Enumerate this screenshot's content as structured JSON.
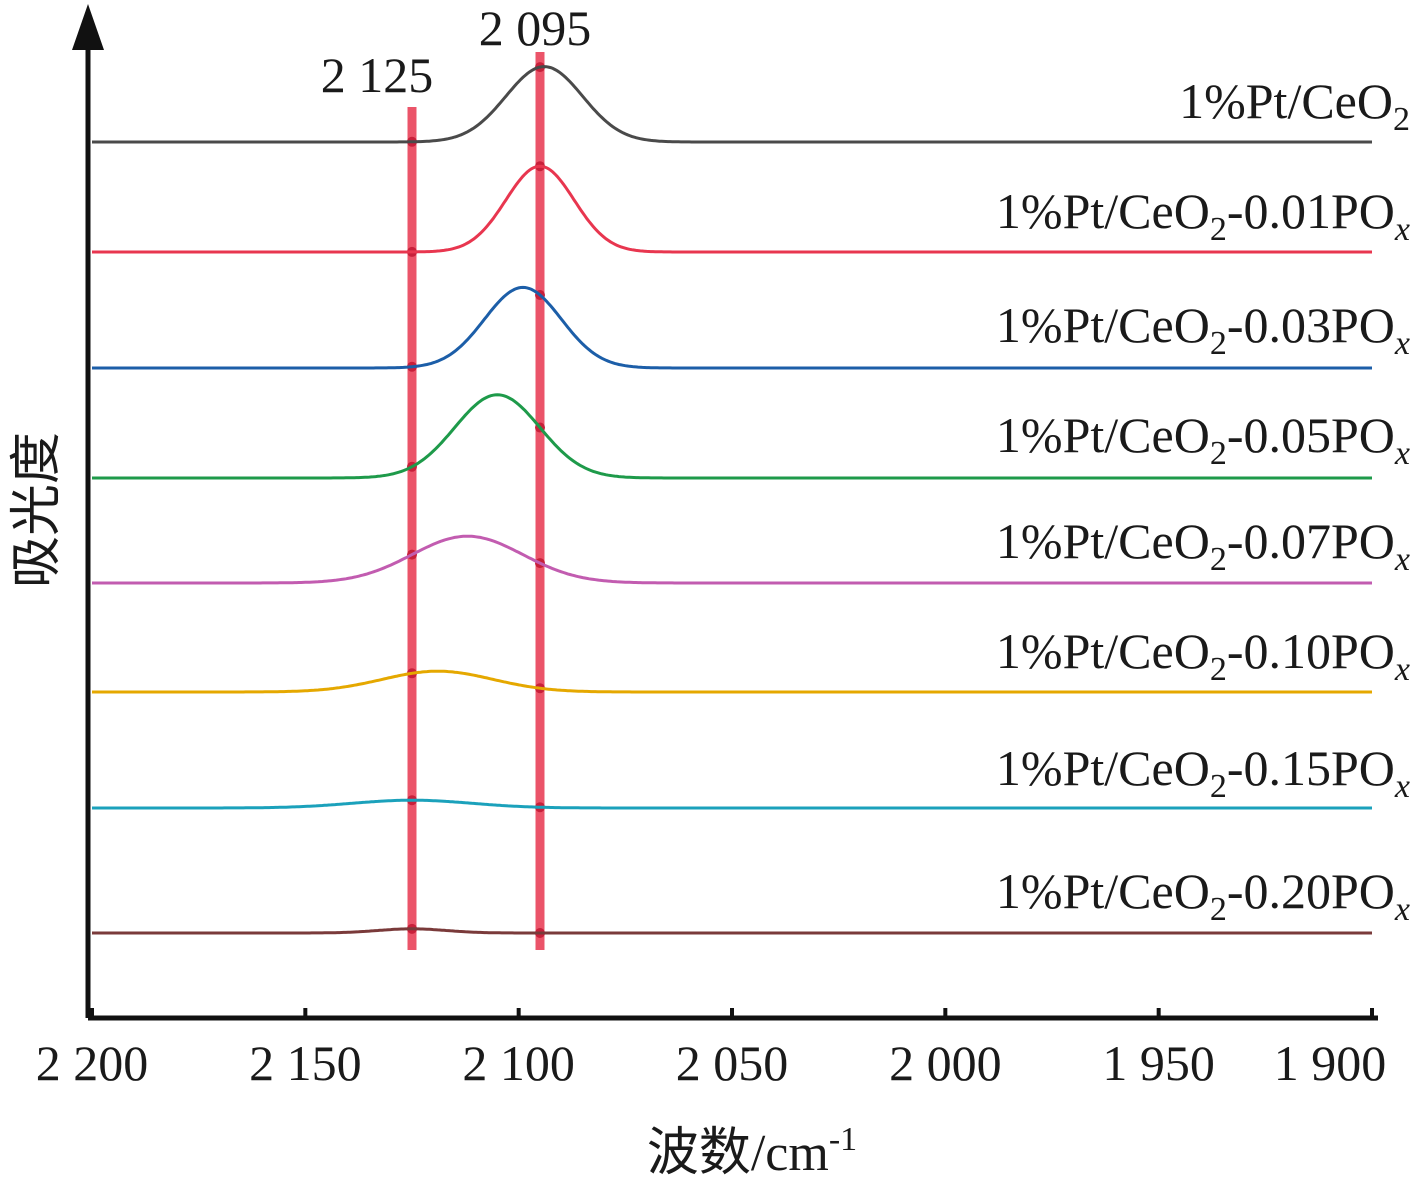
{
  "chart_data": {
    "type": "line",
    "xlabel": "波数/cm",
    "xlabel_sup": "-1",
    "ylabel": "吸光度",
    "xlim": [
      2200,
      1900
    ],
    "x_reversed": true,
    "x_ticks": [
      2200,
      2150,
      2100,
      2050,
      2000,
      1950,
      1900
    ],
    "x_tick_labels": [
      "2 200",
      "2 150",
      "2 100",
      "2 050",
      "2 000",
      "1 950",
      "1 900"
    ],
    "y_ticks_shown": false,
    "grid": false,
    "legend": "inline labels above each curve, right-aligned",
    "stacked_offset": true,
    "reference_lines": [
      {
        "x": 2125,
        "label": "2 125",
        "color": "#e8364f"
      },
      {
        "x": 2095,
        "label": "2 095",
        "color": "#e8364f"
      }
    ],
    "series": [
      {
        "name": "1%Pt/CeO2",
        "label_parts": [
          "1%Pt/CeO",
          "2",
          ""
        ],
        "color": "#4a4a4a",
        "peak_x": 2094,
        "peak_height": 0.145,
        "peak_width": 9
      },
      {
        "name": "1%Pt/CeO2-0.01POx",
        "label_parts": [
          "1%Pt/CeO",
          "2",
          "-0.01PO"
        ],
        "color": "#e8364f",
        "peak_x": 2095,
        "peak_height": 0.165,
        "peak_width": 8
      },
      {
        "name": "1%Pt/CeO2-0.03POx",
        "label_parts": [
          "1%Pt/CeO",
          "2",
          "-0.03PO"
        ],
        "color": "#1c5ea8",
        "peak_x": 2099,
        "peak_height": 0.155,
        "peak_width": 9
      },
      {
        "name": "1%Pt/CeO2-0.05POx",
        "label_parts": [
          "1%Pt/CeO",
          "2",
          "-0.05PO"
        ],
        "color": "#1e9a4a",
        "peak_x": 2105,
        "peak_height": 0.16,
        "peak_width": 10
      },
      {
        "name": "1%Pt/CeO2-0.07POx",
        "label_parts": [
          "1%Pt/CeO",
          "2",
          "-0.07PO"
        ],
        "color": "#c25cb0",
        "peak_x": 2112,
        "peak_height": 0.09,
        "peak_width": 13
      },
      {
        "name": "1%Pt/CeO2-0.10POx",
        "label_parts": [
          "1%Pt/CeO",
          "2",
          "-0.10PO"
        ],
        "color": "#e5a800",
        "peak_x": 2119,
        "peak_height": 0.04,
        "peak_width": 13
      },
      {
        "name": "1%Pt/CeO2-0.15POx",
        "label_parts": [
          "1%Pt/CeO",
          "2",
          "-0.15PO"
        ],
        "color": "#1ba1bb",
        "peak_x": 2125,
        "peak_height": 0.015,
        "peak_width": 14
      },
      {
        "name": "1%Pt/CeO2-0.20POx",
        "label_parts": [
          "1%Pt/CeO",
          "2",
          "-0.20PO"
        ],
        "color": "#7a3a3a",
        "peak_x": 2125,
        "peak_height": 0.008,
        "peak_width": 8
      }
    ],
    "series_label_suffix": "x"
  }
}
